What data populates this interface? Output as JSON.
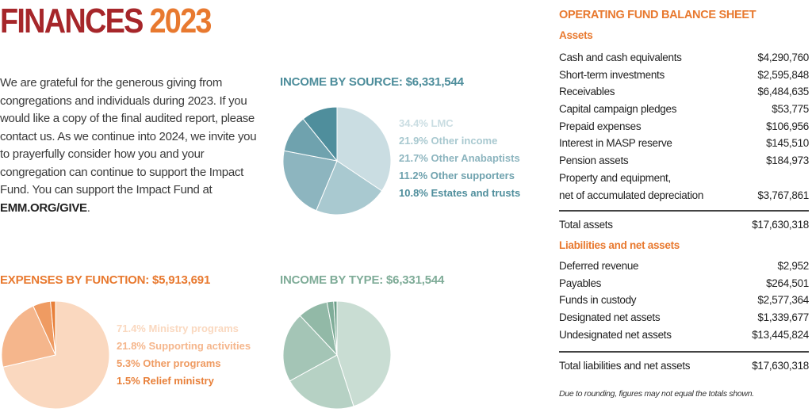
{
  "header": {
    "title": "FINANCES",
    "year": "2023"
  },
  "intro": {
    "text": "We are grateful for the generous giving from congregations and individuals during 2023. If you would like a copy of the final audited report, please contact us. As we continue into 2024, we invite you to prayerfully consider how you and your congregation can continue to support the Impact Fund. You can support the Impact Fund at ",
    "link": "EMM.ORG/GIVE",
    "end": "."
  },
  "chart_data": [
    {
      "type": "pie",
      "title": "INCOME BY SOURCE: $6,331,544",
      "title_color": "#4d8d9b",
      "categories": [
        "LMC",
        "Other income",
        "Other Anabaptists",
        "Other supporters",
        "Estates and trusts"
      ],
      "values": [
        34.4,
        21.9,
        21.7,
        11.2,
        10.8
      ],
      "value_labels": [
        "34.4%",
        "21.9%",
        "21.7%",
        "11.2%",
        "10.8%"
      ],
      "colors": [
        "#cadde2",
        "#a9c9d0",
        "#8db5bf",
        "#6fa2ae",
        "#4f8e9c"
      ]
    },
    {
      "type": "pie",
      "title": "EXPENSES BY FUNCTION: $5,913,691",
      "title_color": "#e8792f",
      "categories": [
        "Ministry programs",
        "Supporting activities",
        "Other programs",
        "Relief ministry"
      ],
      "values": [
        71.4,
        21.8,
        5.3,
        1.5
      ],
      "value_labels": [
        "71.4%",
        "21.8%",
        "5.3%",
        "1.5%"
      ],
      "colors": [
        "#fad8bf",
        "#f5b68c",
        "#ef9b62",
        "#e8803a"
      ]
    },
    {
      "type": "pie",
      "title": "INCOME BY TYPE: $6,331,544",
      "title_color": "#7fac98",
      "values": [
        45,
        22,
        21,
        9,
        2,
        1
      ],
      "colors": [
        "#c9ddd3",
        "#b6d1c4",
        "#a4c5b6",
        "#92b9a7",
        "#80ad99",
        "#6ea18b"
      ]
    }
  ],
  "balance_sheet": {
    "title": "OPERATING FUND BALANCE SHEET",
    "assets_heading": "Assets",
    "assets": [
      {
        "label": "Cash and cash equivalents",
        "value": "$4,290,760"
      },
      {
        "label": "Short-term investments",
        "value": "$2,595,848"
      },
      {
        "label": "Receivables",
        "value": "$6,484,635"
      },
      {
        "label": "Capital campaign pledges",
        "value": "$53,775"
      },
      {
        "label": "Prepaid expenses",
        "value": "$106,956"
      },
      {
        "label": "Interest in MASP reserve",
        "value": "$145,510"
      },
      {
        "label": "Pension assets",
        "value": "$184,973"
      },
      {
        "label": "Property and equipment,",
        "label_cont": "net of accumulated depreciation",
        "value": "$3,767,861"
      }
    ],
    "total_assets": {
      "label": "Total assets",
      "value": "$17,630,318"
    },
    "liabilities_heading": "Liabilities and net assets",
    "liabilities": [
      {
        "label": "Deferred revenue",
        "value": "$2,952"
      },
      {
        "label": "Payables",
        "value": "$264,501"
      },
      {
        "label": "Funds in custody",
        "value": "$2,577,364"
      },
      {
        "label": "Designated net assets",
        "value": "$1,339,677"
      },
      {
        "label": "Undesignated net assets",
        "value": "$13,445,824"
      }
    ],
    "total_liabilities": {
      "label": "Total liabilities and net assets",
      "value": "$17,630,318"
    },
    "footnote": "Due to rounding, figures may not equal the totals shown."
  }
}
